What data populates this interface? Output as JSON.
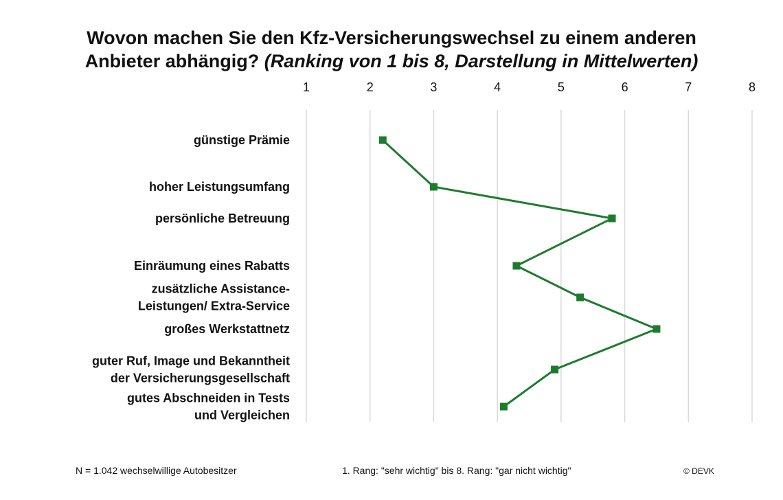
{
  "title_line1": "Wovon machen Sie den Kfz-Versicherungswechsel zu einem anderen",
  "title_line2_main": "Anbieter abhängig?",
  "title_line2_italic": "(Ranking von 1 bis 8, Darstellung in Mittelwerten)",
  "footer": {
    "sample": "N = 1.042 wechselwillige Autobesitzer",
    "scale_note": "1. Rang: \"sehr wichtig\" bis 8. Rang: \"gar nicht wichtig\"",
    "copyright": "© DEVK"
  },
  "colors": {
    "line": "#1e7b2e",
    "grid": "#d9d9d9"
  },
  "chart_data": {
    "type": "line",
    "orientation": "horizontal",
    "xlim": [
      1,
      8
    ],
    "xticks": [
      "1",
      "2",
      "3",
      "4",
      "5",
      "6",
      "7",
      "8"
    ],
    "grid": true,
    "marker": "square",
    "categories": [
      [
        "günstige Prämie"
      ],
      [
        "hoher Leistungsumfang"
      ],
      [
        "persönliche Betreuung"
      ],
      [
        "Einräumung eines Rabatts"
      ],
      [
        "zusätzliche Assistance-",
        "Leistungen/ Extra-Service"
      ],
      [
        "großes Werkstattnetz"
      ],
      [
        "guter Ruf, Image und Bekanntheit",
        "der Versicherungsgesellschaft"
      ],
      [
        "gutes Abschneiden in Tests",
        "und Vergleichen"
      ]
    ],
    "values": [
      2.2,
      3.0,
      5.8,
      4.3,
      5.3,
      6.5,
      4.9,
      4.1
    ]
  }
}
